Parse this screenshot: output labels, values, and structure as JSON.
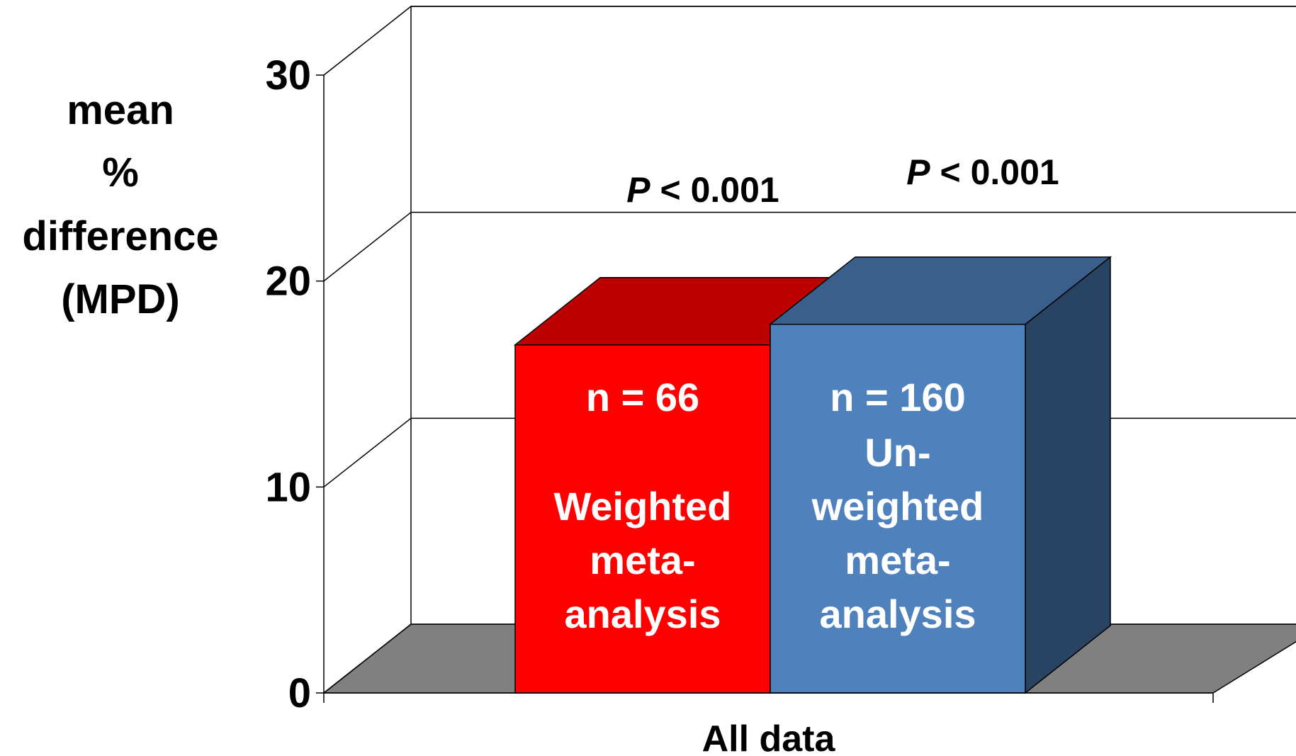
{
  "chart_data": {
    "type": "bar",
    "style": "3d",
    "categories": [
      "All data"
    ],
    "xlabel": "All data",
    "ylabel": [
      "mean",
      "%",
      "difference",
      "(MPD)"
    ],
    "ylim": [
      0,
      30
    ],
    "yticks": [
      "0",
      "10",
      "20",
      "30"
    ],
    "grid": true,
    "floor_color": "#808080",
    "series": [
      {
        "values": [
          16.9
        ],
        "color": "#ff0000",
        "n_label": "n = 66",
        "label_lines": [
          "Weighted",
          "meta-",
          "analysis"
        ],
        "p_label": {
          "italic": "P",
          "text": " < 0.001"
        }
      },
      {
        "values": [
          17.9
        ],
        "color": "#4f81bd",
        "n_label": "n = 160",
        "label_lines": [
          "Un-",
          "weighted",
          "meta-",
          "analysis"
        ],
        "p_label": {
          "italic": "P",
          "text": " < 0.001"
        }
      }
    ]
  }
}
